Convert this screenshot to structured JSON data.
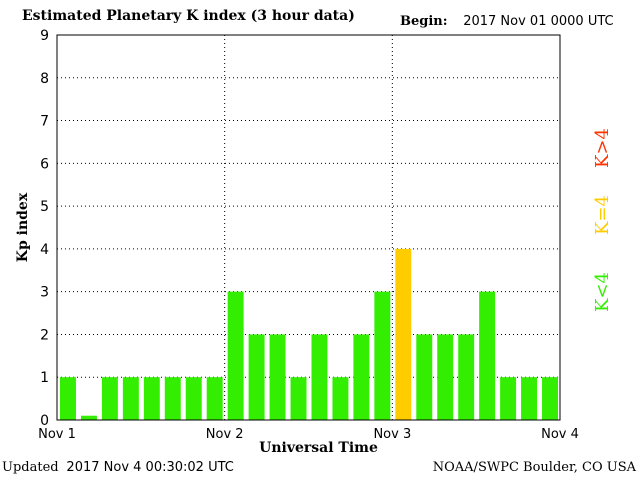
{
  "header": {
    "title": "Estimated Planetary K index (3 hour data)",
    "begin_label": "Begin:",
    "begin_value": "2017 Nov 01 0000 UTC"
  },
  "footer": {
    "updated_label": "Updated",
    "updated_value": "2017 Nov  4 00:30:02 UTC",
    "source": "NOAA/SWPC Boulder, CO USA"
  },
  "legend": [
    {
      "label": "K<4",
      "color": "#33ee00"
    },
    {
      "label": "K=4",
      "color": "#ffcc00"
    },
    {
      "label": "K>4",
      "color": "#ff3300"
    }
  ],
  "chart_data": {
    "type": "bar",
    "title": "Estimated Planetary K index (3 hour data)",
    "ylabel": "Kp index",
    "xlabel": "Universal Time",
    "ylim": [
      0,
      9
    ],
    "yticks": [
      0,
      1,
      2,
      3,
      4,
      5,
      6,
      7,
      8,
      9
    ],
    "xtick_labels": [
      "Nov 1",
      "Nov 2",
      "Nov 3",
      "Nov 4"
    ],
    "grid": true,
    "colors": {
      "below": "#33ee00",
      "equal": "#ffcc00",
      "above": "#ff3300"
    },
    "values": [
      1,
      0.1,
      1,
      1,
      1,
      1,
      1,
      1,
      3,
      2,
      2,
      1,
      2,
      1,
      2,
      3,
      4,
      2,
      2,
      2,
      3,
      1,
      1,
      1
    ]
  }
}
